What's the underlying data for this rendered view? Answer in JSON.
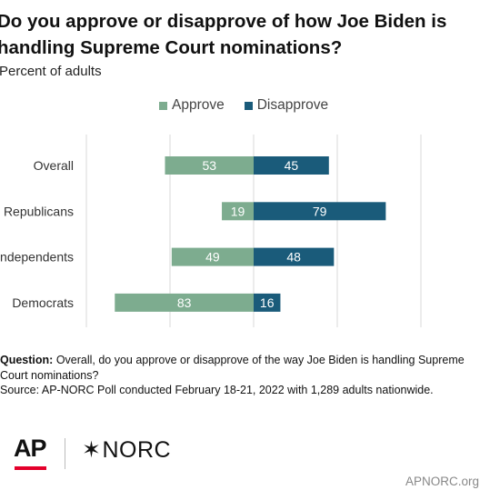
{
  "title": "Do you approve or disapprove of how Joe Biden is handling Supreme Court nominations?",
  "subtitle": "Percent of adults",
  "legend": {
    "approve_label": "Approve",
    "disapprove_label": "Disapprove"
  },
  "colors": {
    "approve": "#7dac8f",
    "disapprove": "#1a5b7a",
    "gridline": "#d9d9d9",
    "brand_red": "#e4002b"
  },
  "chart_data": {
    "type": "bar",
    "orientation": "horizontal",
    "layout": "diverging",
    "title": "Do you approve or disapprove of how Joe Biden is handling Supreme Court nominations?",
    "subtitle": "Percent of adults",
    "categories": [
      "Overall",
      "Republicans",
      "Independents",
      "Democrats"
    ],
    "series": [
      {
        "name": "Approve",
        "values": [
          53,
          19,
          49,
          83
        ],
        "color": "#7dac8f",
        "direction": "left"
      },
      {
        "name": "Disapprove",
        "values": [
          45,
          79,
          48,
          16
        ],
        "color": "#1a5b7a",
        "direction": "right"
      }
    ],
    "xlim": [
      -100,
      100
    ],
    "grid": true,
    "legend_position": "top-center",
    "data_labels": true
  },
  "notes": {
    "question_label": "Question:",
    "question_text": " Overall, do you approve or disapprove of the way Joe Biden is handling Supreme Court nominations?",
    "source": "Source: AP-NORC Poll conducted February 18-21, 2022 with 1,289 adults nationwide."
  },
  "logos": {
    "ap": "AP",
    "norc_star": "✶",
    "norc": "NORC"
  },
  "footer": {
    "url": "APNORC.org"
  }
}
